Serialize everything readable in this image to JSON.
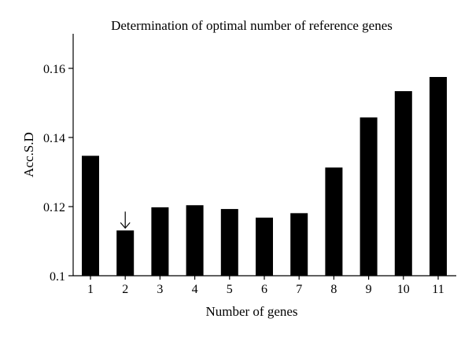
{
  "chart_data": {
    "type": "bar",
    "title": "Determination of optimal number of reference genes",
    "xlabel": "Number of genes",
    "ylabel": "Acc.S.D",
    "categories": [
      "1",
      "2",
      "3",
      "4",
      "5",
      "6",
      "7",
      "8",
      "9",
      "10",
      "11"
    ],
    "values": [
      0.1347,
      0.1131,
      0.1198,
      0.1204,
      0.1193,
      0.1168,
      0.1181,
      0.1313,
      0.1458,
      0.1534,
      0.1575
    ],
    "ylim": [
      0.1,
      0.17
    ],
    "yticks": [
      0.1,
      0.12,
      0.14,
      0.16
    ],
    "ytick_labels": [
      "0.1",
      "0.12",
      "0.14",
      "0.16"
    ],
    "grid": false,
    "legend": "none",
    "bar_color": "#000000",
    "annotations": [
      {
        "category": "2",
        "marker": "↓",
        "meaning": "optimal"
      }
    ]
  }
}
